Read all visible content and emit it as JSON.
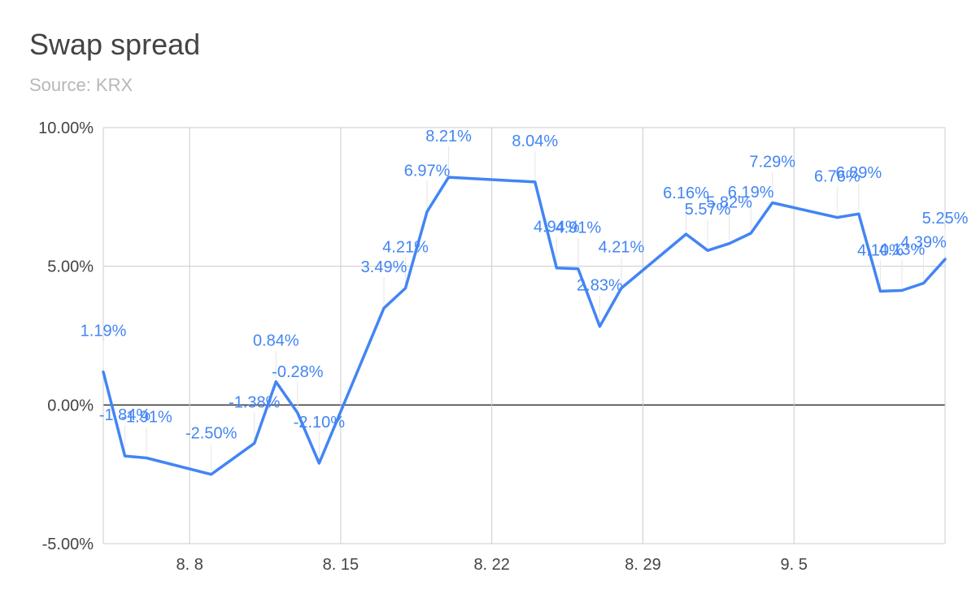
{
  "chart_data": {
    "type": "line",
    "title": "Swap spread",
    "subtitle": "Source: KRX",
    "xlabel": "",
    "ylabel": "",
    "ylim": [
      -5,
      10
    ],
    "yticks": [
      {
        "value": 10,
        "label": "10.00%"
      },
      {
        "value": 5,
        "label": "5.00%"
      },
      {
        "value": 0,
        "label": "0.00%"
      },
      {
        "value": -5,
        "label": "-5.00%"
      }
    ],
    "xlim": [
      "2018-08-04",
      "2018-09-11"
    ],
    "xticks": [
      {
        "date": "2018-08-08",
        "label": "8. 8"
      },
      {
        "date": "2018-08-15",
        "label": "8. 15"
      },
      {
        "date": "2018-08-22",
        "label": "8. 22"
      },
      {
        "date": "2018-08-29",
        "label": "8. 29"
      },
      {
        "date": "2018-09-05",
        "label": "9. 5"
      }
    ],
    "grid": true,
    "legend": "none",
    "series_color": "#4285f4",
    "points": [
      {
        "date": "2018-08-04",
        "value": 1.19,
        "label": "1.19%"
      },
      {
        "date": "2018-08-05",
        "value": -1.84,
        "label": "-1.84%"
      },
      {
        "date": "2018-08-06",
        "value": -1.91,
        "label": "-1.91%"
      },
      {
        "date": "2018-08-09",
        "value": -2.5,
        "label": "-2.50%"
      },
      {
        "date": "2018-08-11",
        "value": -1.38,
        "label": "-1.38%"
      },
      {
        "date": "2018-08-12",
        "value": 0.84,
        "label": "0.84%"
      },
      {
        "date": "2018-08-13",
        "value": -0.28,
        "label": "-0.28%"
      },
      {
        "date": "2018-08-14",
        "value": -2.1,
        "label": "-2.10%"
      },
      {
        "date": "2018-08-17",
        "value": 3.49,
        "label": "3.49%"
      },
      {
        "date": "2018-08-18",
        "value": 4.21,
        "label": "4.21%"
      },
      {
        "date": "2018-08-19",
        "value": 6.97,
        "label": "6.97%"
      },
      {
        "date": "2018-08-20",
        "value": 8.21,
        "label": "8.21%"
      },
      {
        "date": "2018-08-24",
        "value": 8.04,
        "label": "8.04%"
      },
      {
        "date": "2018-08-25",
        "value": 4.94,
        "label": "4.94%"
      },
      {
        "date": "2018-08-26",
        "value": 4.91,
        "label": "4.91%"
      },
      {
        "date": "2018-08-27",
        "value": 2.83,
        "label": "2.83%"
      },
      {
        "date": "2018-08-28",
        "value": 4.21,
        "label": "4.21%"
      },
      {
        "date": "2018-08-31",
        "value": 6.16,
        "label": "6.16%"
      },
      {
        "date": "2018-09-01",
        "value": 5.57,
        "label": "5.57%"
      },
      {
        "date": "2018-09-02",
        "value": 5.82,
        "label": "5.82%"
      },
      {
        "date": "2018-09-03",
        "value": 6.19,
        "label": "6.19%"
      },
      {
        "date": "2018-09-04",
        "value": 7.29,
        "label": "7.29%"
      },
      {
        "date": "2018-09-07",
        "value": 6.76,
        "label": "6.76%"
      },
      {
        "date": "2018-09-08",
        "value": 6.89,
        "label": "6.89%"
      },
      {
        "date": "2018-09-09",
        "value": 4.1,
        "label": "4.10%"
      },
      {
        "date": "2018-09-10",
        "value": 4.13,
        "label": "4.13%"
      },
      {
        "date": "2018-09-11",
        "value": 4.39,
        "label": "4.39%"
      },
      {
        "date": "2018-09-12",
        "value": 5.25,
        "label": "5.25%"
      }
    ]
  }
}
